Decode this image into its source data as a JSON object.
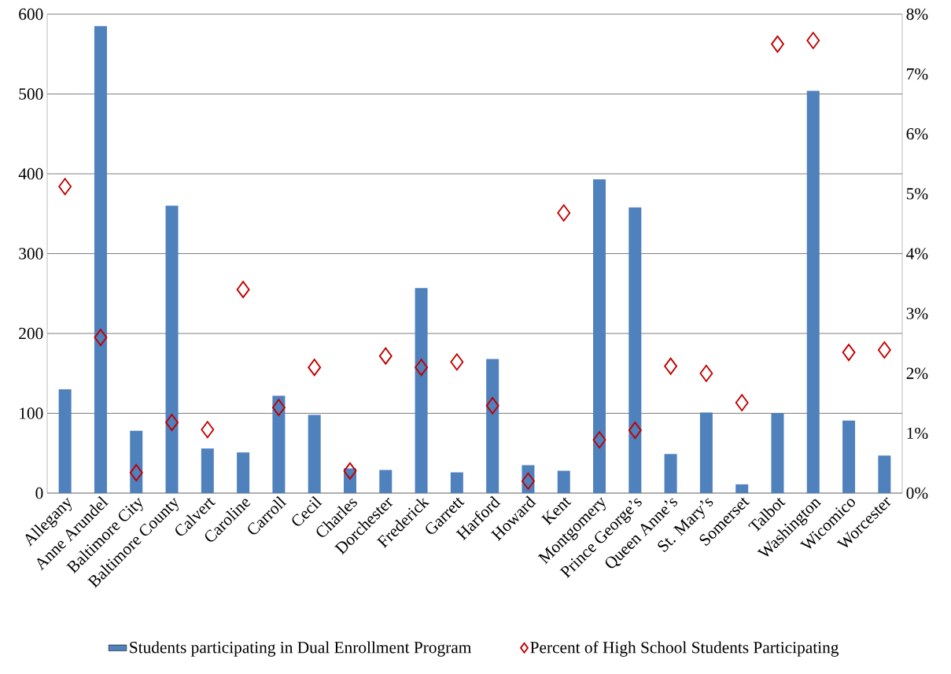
{
  "chart_data": {
    "type": "bar",
    "categories": [
      "Allegany",
      "Anne Arundel",
      "Baltimore City",
      "Baltimore County",
      "Calvert",
      "Caroline",
      "Carroll",
      "Cecil",
      "Charles",
      "Dorchester",
      "Frederick",
      "Garrett",
      "Harford",
      "Howard",
      "Kent",
      "Montgomery",
      "Prince George’s",
      "Queen Anne’s",
      "St. Mary’s",
      "Somerset",
      "Talbot",
      "Washington",
      "Wicomico",
      "Worcester"
    ],
    "series": [
      {
        "name": "Students participating in Dual Enrollment Program",
        "color": "#4f81bd",
        "values": [
          130,
          585,
          78,
          360,
          56,
          51,
          122,
          98,
          31,
          29,
          257,
          26,
          168,
          35,
          28,
          393,
          358,
          49,
          101,
          11,
          100,
          504,
          91,
          47
        ]
      },
      {
        "name": "Percent of High School Students Participating",
        "type": "scatter",
        "axis": "y2",
        "marker": "diamond",
        "color": "#c00000",
        "values": [
          5.12,
          2.6,
          0.34,
          1.18,
          1.06,
          3.4,
          1.43,
          2.1,
          0.37,
          2.29,
          2.1,
          2.19,
          1.46,
          0.2,
          4.68,
          0.89,
          1.05,
          2.12,
          2.0,
          1.51,
          7.5,
          7.56,
          2.35,
          2.39
        ]
      }
    ],
    "ylim": [
      0,
      600
    ],
    "yticks": [
      0,
      100,
      200,
      300,
      400,
      500,
      600
    ],
    "y2lim": [
      0,
      8
    ],
    "y2ticks": [
      {
        "value": 0,
        "label": "0%"
      },
      {
        "value": 1,
        "label": "1%"
      },
      {
        "value": 2,
        "label": "2%"
      },
      {
        "value": 3,
        "label": "3%"
      },
      {
        "value": 4,
        "label": "4%"
      },
      {
        "value": 5,
        "label": "5%"
      },
      {
        "value": 6,
        "label": "6%"
      },
      {
        "value": 7,
        "label": "7%"
      },
      {
        "value": 8,
        "label": "8%"
      }
    ],
    "grid": "y",
    "legend": "bottom"
  }
}
